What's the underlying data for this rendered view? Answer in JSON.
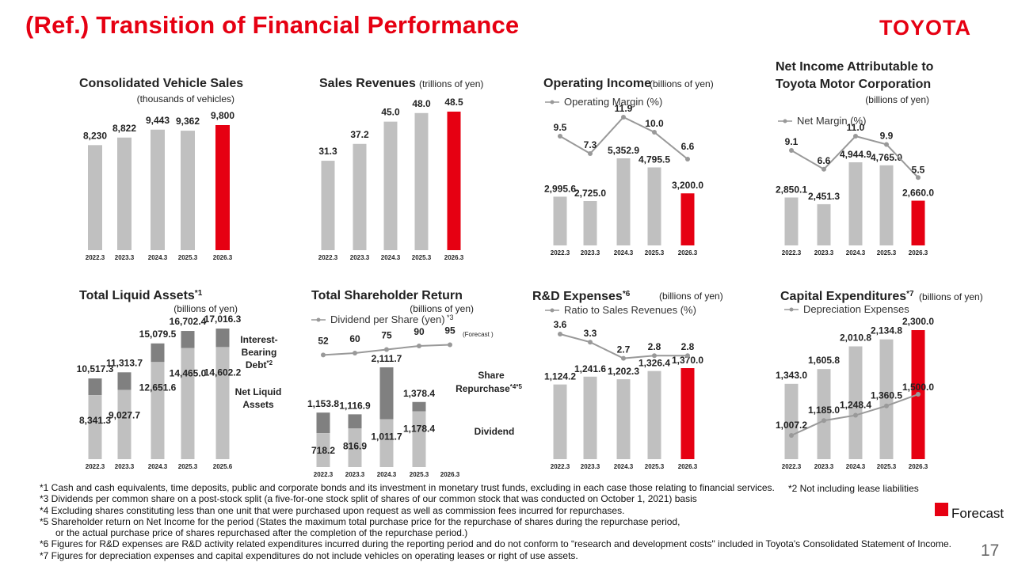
{
  "page": {
    "title": "(Ref.) Transition of Financial Performance",
    "logo": "TOYOTA",
    "page_number": "17",
    "forecast_label": "Forecast",
    "colors": {
      "actual": "#c0c0c0",
      "forecast": "#e60012",
      "dark": "#808080",
      "line": "#999999",
      "title": "#e60012"
    },
    "notes": [
      "*1  Cash and cash equivalents, time deposits, public and corporate bonds and its investment in monetary trust funds, excluding in each case those relating to financial services.",
      "*3  Dividends per common share on a post-stock split (a five-for-one stock split of shares of our common stock that was conducted on October 1, 2021) basis",
      "*4  Excluding shares constituting less than one unit that were purchased upon request as well as commission fees incurred for repurchases.",
      "*5  Shareholder return on Net Income for the period (States the maximum total purchase price for the repurchase of shares during the repurchase period,",
      "      or the actual purchase price of shares repurchased after the completion of the repurchase period.)",
      "*6  Figures for R&D expenses are R&D activity related expenditures incurred during the reporting period and do not conform to “research and development costs\" included in Toyota's Consolidated Statement of Income.",
      "*7  Figures for depreciation expenses and capital expenditures do not include vehicles on operating leases or right of use assets."
    ],
    "note2": "*2  Not including lease liabilities"
  },
  "chart_data": [
    {
      "type": "bar",
      "title": "Consolidated Vehicle Sales",
      "unit": "(thousands of vehicles)",
      "categories": [
        "2022.3",
        "2023.3",
        "2024.3",
        "2025.3",
        "2026.3"
      ],
      "values": [
        8230,
        8822,
        9443,
        9362,
        9800
      ],
      "labels": [
        "8,230",
        "8,822",
        "9,443",
        "9,362",
        "9,800"
      ],
      "forecast_index": 4
    },
    {
      "type": "bar",
      "title": "Sales Revenues",
      "unit": "(trillions of yen)",
      "categories": [
        "2022.3",
        "2023.3",
        "2024.3",
        "2025.3",
        "2026.3"
      ],
      "values": [
        31.3,
        37.2,
        45.0,
        48.0,
        48.5
      ],
      "labels": [
        "31.3",
        "37.2",
        "45.0",
        "48.0",
        "48.5"
      ],
      "forecast_index": 4
    },
    {
      "type": "bar+line",
      "title": "Operating Income",
      "unit": "(billions of yen)",
      "line_legend": "Operating Margin (%)",
      "categories": [
        "2022.3",
        "2023.3",
        "2024.3",
        "2025.3",
        "2026.3"
      ],
      "values": [
        2995.6,
        2725.0,
        5352.9,
        4795.5,
        3200.0
      ],
      "labels": [
        "2,995.6",
        "2,725.0",
        "5,352.9",
        "4,795.5",
        "3,200.0"
      ],
      "line_values": [
        9.5,
        7.3,
        11.9,
        10.0,
        6.6
      ],
      "line_labels": [
        "9.5",
        "7.3",
        "11.9",
        "10.0",
        "6.6"
      ],
      "forecast_index": 4
    },
    {
      "type": "bar+line",
      "title": "Net Income Attributable to",
      "title2": "Toyota Motor Corporation",
      "unit": "(billions of yen)",
      "line_legend": "Net Margin (%)",
      "categories": [
        "2022.3",
        "2023.3",
        "2024.3",
        "2025.3",
        "2026.3"
      ],
      "values": [
        2850.1,
        2451.3,
        4944.9,
        4765.0,
        2660.0
      ],
      "labels": [
        "2,850.1",
        "2,451.3",
        "4,944.9",
        "4,765.0",
        "2,660.0"
      ],
      "line_values": [
        9.1,
        6.6,
        11.0,
        9.9,
        5.5
      ],
      "line_labels": [
        "9.1",
        "6.6",
        "11.0",
        "9.9",
        "5.5"
      ],
      "forecast_index": 4
    },
    {
      "type": "stacked-bar",
      "title": "Total Liquid Assets",
      "title_sup": "*1",
      "unit": "(billions of yen)",
      "categories": [
        "2022.3",
        "2023.3",
        "2024.3",
        "2025.3",
        "2025.6"
      ],
      "totals": [
        10517.3,
        11313.7,
        15079.5,
        16702.4,
        17016.3
      ],
      "total_labels": [
        "10,517.3",
        "11,313.7",
        "15,079.5",
        "16,702.4",
        "17,016.3"
      ],
      "net_liquid": [
        8341.3,
        9027.7,
        12651.6,
        14465.0,
        14602.2
      ],
      "net_labels": [
        "8,341.3",
        "9,027.7",
        "12,651.6",
        "14,465.0",
        "14,602.2"
      ],
      "series_labels": {
        "top_a": "Interest-",
        "top_b": "Bearing",
        "top_c": "Debt",
        "top_sup": "*2",
        "bottom_a": "Net Liquid",
        "bottom_b": "Assets"
      }
    },
    {
      "type": "stacked-bar+line",
      "title": "Total Shareholder Return",
      "unit": "(billions of yen)",
      "line_legend": "Dividend per Share (yen)",
      "line_legend_sup": "*3",
      "forecast_tag": "(Forecast )",
      "categories": [
        "2022.3",
        "2023.3",
        "2024.3",
        "2025.3",
        "2026.3"
      ],
      "totals": [
        1153.8,
        1116.9,
        2111.7,
        1378.4,
        null
      ],
      "total_labels": [
        "1,153.8",
        "1,116.9",
        "2,111.7",
        "1,378.4",
        ""
      ],
      "dividend": [
        718.2,
        816.9,
        1011.7,
        1178.4,
        null
      ],
      "dividend_labels": [
        "718.2",
        "816.9",
        "1,011.7",
        "1,178.4",
        ""
      ],
      "line_values": [
        52,
        60,
        75,
        90,
        95
      ],
      "line_labels": [
        "52",
        "60",
        "75",
        "90",
        "95"
      ],
      "series_labels": {
        "top_a": "Share",
        "top_b": "Repurchase",
        "top_sup": "*4*5",
        "bottom": "Dividend"
      }
    },
    {
      "type": "bar+line",
      "title": "R&D Expenses",
      "title_sup": "*6",
      "unit": "(billions of yen)",
      "line_legend": "Ratio to Sales Revenues (%)",
      "categories": [
        "2022.3",
        "2023.3",
        "2024.3",
        "2025.3",
        "2026.3"
      ],
      "values": [
        1124.2,
        1241.6,
        1202.3,
        1326.4,
        1370.0
      ],
      "labels": [
        "1,124.2",
        "1,241.6",
        "1,202.3",
        "1,326.4",
        "1,370.0"
      ],
      "line_values": [
        3.6,
        3.3,
        2.7,
        2.8,
        2.8
      ],
      "line_labels": [
        "3.6",
        "3.3",
        "2.7",
        "2.8",
        "2.8"
      ],
      "forecast_index": 4
    },
    {
      "type": "bar+line",
      "title": "Capital Expenditures",
      "title_sup": "*7",
      "unit": "(billions of yen)",
      "line_legend": "Depreciation Expenses",
      "categories": [
        "2022.3",
        "2023.3",
        "2024.3",
        "2025.3",
        "2026.3"
      ],
      "values": [
        1343.0,
        1605.8,
        2010.8,
        2134.8,
        2300.0
      ],
      "labels": [
        "1,343.0",
        "1,605.8",
        "2,010.8",
        "2,134.8",
        "2,300.0"
      ],
      "line_values": [
        1007.2,
        1185.0,
        1248.4,
        1360.5,
        1500.0
      ],
      "line_labels": [
        "1,007.2",
        "1,185.0",
        "1,248.4",
        "1,360.5",
        "1,500.0"
      ],
      "forecast_index": 4
    }
  ]
}
